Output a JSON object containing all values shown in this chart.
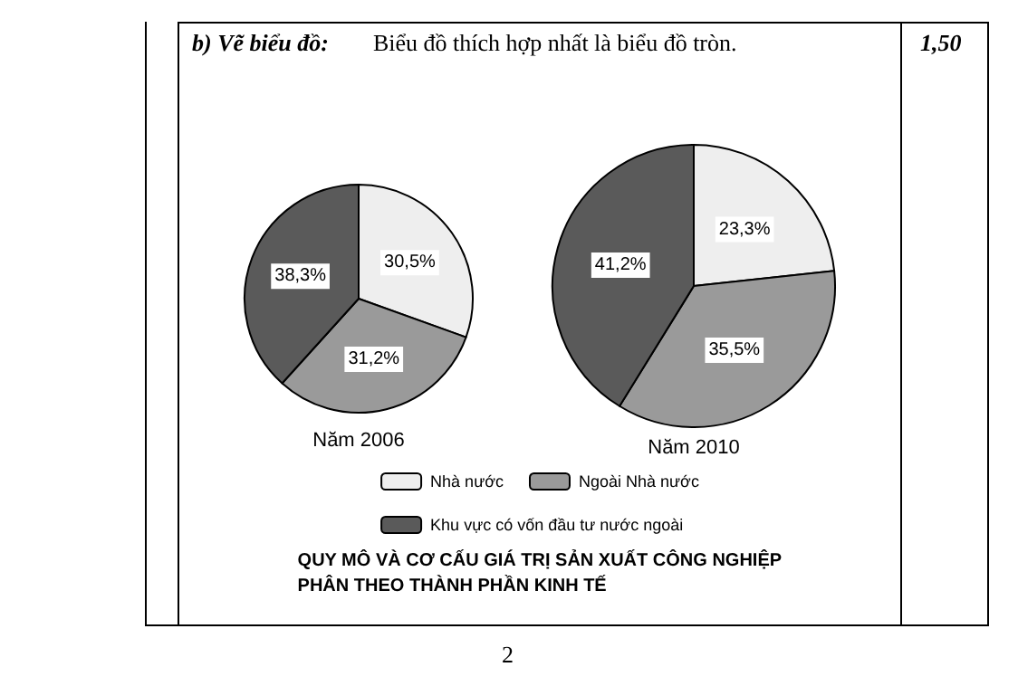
{
  "chart_data": {
    "type": "pie",
    "title": "QUY MÔ VÀ CƠ CẤU GIÁ TRỊ SẢN XUẤT CÔNG NGHIỆP\nPHÂN THEO THÀNH PHẦN KINH TẾ",
    "categories": [
      "Nhà nước",
      "Ngoài Nhà nước",
      "Khu vực có vốn đầu tư nước ngoài"
    ],
    "colors": [
      "#eeeeee",
      "#9a9a9a",
      "#5a5a5a"
    ],
    "legend": "bottom",
    "annotations": [
      "b) Vẽ biểu đồ:",
      "Biểu đồ thích hợp nhất là biểu đồ tròn.",
      "1,50",
      "2"
    ],
    "series": [
      {
        "name": "Năm 2006",
        "values": [
          30.5,
          31.2,
          38.3
        ],
        "value_labels": [
          "30,5%",
          "31,2%",
          "38,3%"
        ]
      },
      {
        "name": "Năm 2010",
        "values": [
          23.3,
          35.5,
          41.2
        ],
        "value_labels": [
          "23,3%",
          "35,5%",
          "41,2%"
        ]
      }
    ]
  }
}
